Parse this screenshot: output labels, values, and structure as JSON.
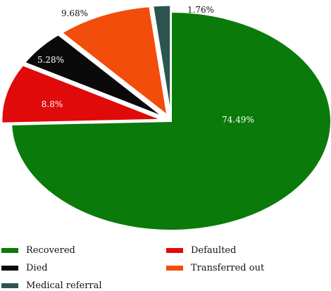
{
  "chart_data": {
    "type": "pie",
    "title": "",
    "slices": [
      {
        "name": "Recovered",
        "value": 74.49,
        "label": "74.49%",
        "color": "#0a7a0a",
        "label_color": "#ffffff"
      },
      {
        "name": "Defaulted",
        "value": 8.8,
        "label": "8.8%",
        "color": "#e00a0a",
        "label_color": "#ffffff"
      },
      {
        "name": "Died",
        "value": 5.28,
        "label": "5.28%",
        "color": "#0a0a0a",
        "label_color": "#ffffff"
      },
      {
        "name": "Transferred out",
        "value": 9.68,
        "label": "9.68%",
        "color": "#f24d0a",
        "label_color": "#111111"
      },
      {
        "name": "Medical referral",
        "value": 1.76,
        "label": "1.76%",
        "color": "#2d5550",
        "label_color": "#111111"
      }
    ],
    "legend_position": "bottom"
  }
}
